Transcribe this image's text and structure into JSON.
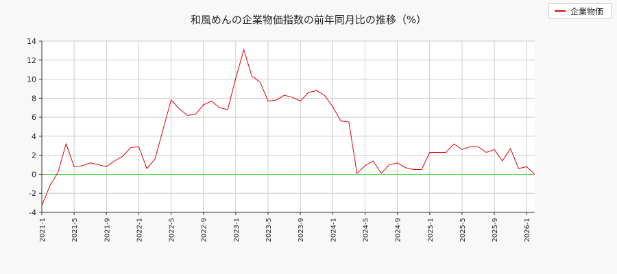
{
  "chart_data": {
    "type": "line",
    "title": "和風めんの企業物価指数の前年同月比の推移（%）",
    "xlabel": "",
    "ylabel": "",
    "ylim": [
      -4,
      14
    ],
    "yticks": [
      "-4",
      "-2",
      "0",
      "2",
      "4",
      "6",
      "8",
      "10",
      "12",
      "14"
    ],
    "xticks": [
      "2021-1",
      "2021-5",
      "2021-9",
      "2022-1",
      "2022-5",
      "2022-9",
      "2023-1",
      "2023-5",
      "2023-9",
      "2024-1",
      "2024-5",
      "2024-9",
      "2025-1",
      "2025-5",
      "2025-9",
      "2026-1"
    ],
    "grid": true,
    "legend_position": "top-right",
    "reference_line": {
      "y": 0,
      "color": "#33cc33"
    },
    "series": [
      {
        "name": "企業物価",
        "color": "#dd0000",
        "x": [
          "2021-1",
          "2021-2",
          "2021-3",
          "2021-4",
          "2021-5",
          "2021-6",
          "2021-7",
          "2021-8",
          "2021-9",
          "2021-10",
          "2021-11",
          "2021-12",
          "2022-1",
          "2022-2",
          "2022-3",
          "2022-4",
          "2022-5",
          "2022-6",
          "2022-7",
          "2022-8",
          "2022-9",
          "2022-10",
          "2022-11",
          "2022-12",
          "2023-1",
          "2023-2",
          "2023-3",
          "2023-4",
          "2023-5",
          "2023-6",
          "2023-7",
          "2023-8",
          "2023-9",
          "2023-10",
          "2023-11",
          "2023-12",
          "2024-1",
          "2024-2",
          "2024-3",
          "2024-4",
          "2024-5",
          "2024-6",
          "2024-7",
          "2024-8",
          "2024-9",
          "2024-10",
          "2024-11",
          "2024-12",
          "2025-1",
          "2025-2",
          "2025-3",
          "2025-4",
          "2025-5",
          "2025-6",
          "2025-7",
          "2025-8",
          "2025-9",
          "2025-10",
          "2025-11",
          "2025-12",
          "2026-1",
          "2026-2"
        ],
        "values": [
          -3.3,
          -1.2,
          0.2,
          3.2,
          0.8,
          0.9,
          1.2,
          1.0,
          0.8,
          1.4,
          1.9,
          2.8,
          2.9,
          0.6,
          1.6,
          4.7,
          7.8,
          6.9,
          6.2,
          6.3,
          7.3,
          7.7,
          7.0,
          6.8,
          10.1,
          13.1,
          10.3,
          9.7,
          7.7,
          7.8,
          8.3,
          8.1,
          7.7,
          8.6,
          8.8,
          8.3,
          7.1,
          5.6,
          5.5,
          0.1,
          0.9,
          1.4,
          0.1,
          1.0,
          1.2,
          0.7,
          0.5,
          0.5,
          2.3,
          2.3,
          2.3,
          3.2,
          2.6,
          2.9,
          2.9,
          2.3,
          2.6,
          1.4,
          2.7,
          0.6,
          0.8,
          0.0
        ]
      }
    ]
  }
}
